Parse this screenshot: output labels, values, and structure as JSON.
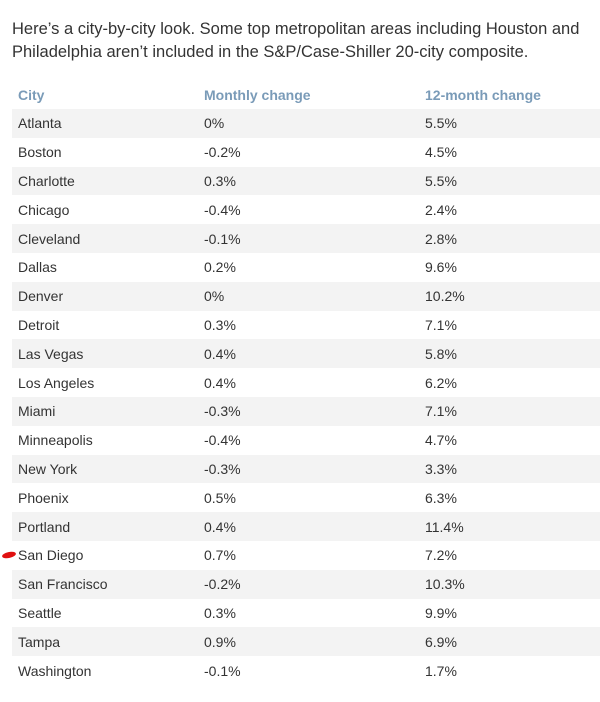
{
  "intro_text": "Here’s a city-by-city look. Some top metropolitan areas including Houston and Philadelphia aren’t included in the S&P/Case-Shiller 20-city composite.",
  "table": {
    "headers": {
      "city": "City",
      "monthly": "Monthly change",
      "yearly": "12-month change"
    },
    "rows": [
      {
        "city": "Atlanta",
        "monthly": "0%",
        "yearly": "5.5%"
      },
      {
        "city": "Boston",
        "monthly": "-0.2%",
        "yearly": "4.5%"
      },
      {
        "city": "Charlotte",
        "monthly": "0.3%",
        "yearly": "5.5%"
      },
      {
        "city": "Chicago",
        "monthly": "-0.4%",
        "yearly": "2.4%"
      },
      {
        "city": "Cleveland",
        "monthly": "-0.1%",
        "yearly": "2.8%"
      },
      {
        "city": "Dallas",
        "monthly": "0.2%",
        "yearly": "9.6%"
      },
      {
        "city": "Denver",
        "monthly": "0%",
        "yearly": "10.2%"
      },
      {
        "city": "Detroit",
        "monthly": "0.3%",
        "yearly": "7.1%"
      },
      {
        "city": "Las Vegas",
        "monthly": "0.4%",
        "yearly": "5.8%"
      },
      {
        "city": "Los Angeles",
        "monthly": "0.4%",
        "yearly": "6.2%"
      },
      {
        "city": "Miami",
        "monthly": "-0.3%",
        "yearly": "7.1%"
      },
      {
        "city": "Minneapolis",
        "monthly": "-0.4%",
        "yearly": "4.7%"
      },
      {
        "city": "New York",
        "monthly": "-0.3%",
        "yearly": "3.3%"
      },
      {
        "city": "Phoenix",
        "monthly": "0.5%",
        "yearly": "6.3%"
      },
      {
        "city": "Portland",
        "monthly": "0.4%",
        "yearly": "11.4%"
      },
      {
        "city": "San Diego",
        "monthly": "0.7%",
        "yearly": "7.2%"
      },
      {
        "city": "San Francisco",
        "monthly": "-0.2%",
        "yearly": "10.3%"
      },
      {
        "city": "Seattle",
        "monthly": "0.3%",
        "yearly": "9.9%"
      },
      {
        "city": "Tampa",
        "monthly": "0.9%",
        "yearly": "6.9%"
      },
      {
        "city": "Washington",
        "monthly": "-0.1%",
        "yearly": "1.7%"
      }
    ]
  },
  "highlight": {
    "city": "San Diego",
    "color": "#e01010"
  },
  "colors": {
    "header_text": "#7a9bb8",
    "stripe": "#f3f3f3",
    "body_text": "#333333"
  }
}
